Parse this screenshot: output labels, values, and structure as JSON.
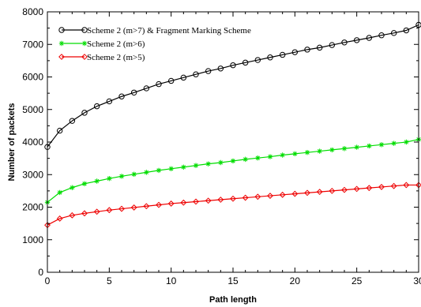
{
  "chart_data": {
    "type": "line",
    "title": "",
    "xlabel": "Path length",
    "ylabel": "Number of packets",
    "xlim": [
      0,
      30
    ],
    "ylim": [
      0,
      8000
    ],
    "xticks": [
      0,
      5,
      10,
      15,
      20,
      25,
      30
    ],
    "yticks": [
      0,
      1000,
      2000,
      3000,
      4000,
      5000,
      6000,
      7000,
      8000
    ],
    "grid": false,
    "legend_position": "top-left",
    "x": [
      0,
      1,
      2,
      3,
      4,
      5,
      6,
      7,
      8,
      9,
      10,
      11,
      12,
      13,
      14,
      15,
      16,
      17,
      18,
      19,
      20,
      21,
      22,
      23,
      24,
      25,
      26,
      27,
      28,
      29,
      30
    ],
    "series": [
      {
        "name": "Scheme 2 (m>7) & Fragment Marking Scheme",
        "color": "#000000",
        "marker": "circle",
        "values": [
          3850,
          4350,
          4650,
          4900,
          5100,
          5250,
          5400,
          5520,
          5650,
          5780,
          5880,
          5980,
          6080,
          6180,
          6260,
          6360,
          6440,
          6520,
          6600,
          6680,
          6760,
          6840,
          6900,
          6980,
          7060,
          7130,
          7200,
          7280,
          7350,
          7430,
          7600
        ]
      },
      {
        "name": "Scheme 2 (m>6)",
        "color": "#00dd00",
        "marker": "star",
        "values": [
          2150,
          2450,
          2600,
          2720,
          2800,
          2880,
          2950,
          3010,
          3070,
          3130,
          3180,
          3230,
          3280,
          3330,
          3370,
          3420,
          3470,
          3510,
          3550,
          3600,
          3640,
          3680,
          3720,
          3760,
          3800,
          3840,
          3880,
          3920,
          3960,
          4000,
          4080
        ]
      },
      {
        "name": "Scheme 2 (m>5)",
        "color": "#ee0000",
        "marker": "diamond",
        "values": [
          1450,
          1650,
          1750,
          1810,
          1860,
          1910,
          1950,
          1990,
          2030,
          2070,
          2110,
          2140,
          2170,
          2200,
          2230,
          2260,
          2290,
          2320,
          2350,
          2380,
          2410,
          2440,
          2470,
          2500,
          2530,
          2560,
          2590,
          2620,
          2650,
          2680,
          2680
        ]
      }
    ]
  }
}
